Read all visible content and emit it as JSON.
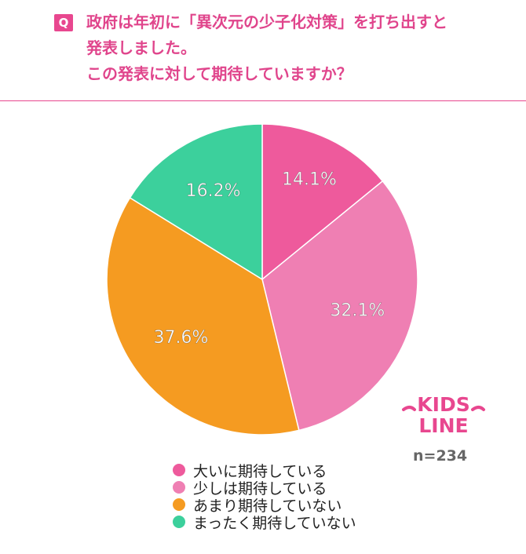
{
  "header": {
    "badge": "Q",
    "question_lines": [
      "政府は年初に「異次元の少子化対策」を打ち出すと",
      "発表しました。",
      "この発表に対して期待していますか？"
    ],
    "color": "#e0458c"
  },
  "logo": {
    "text": "KIDS LINE",
    "line1": "KIDS",
    "line2": "LINE"
  },
  "sample_size": "n=234",
  "chart_data": {
    "type": "pie",
    "start_angle": "12 o'clock",
    "direction": "clockwise",
    "categories": [
      "大いに期待している",
      "少しは期待している",
      "あまり期待していない",
      "まったく期待していない"
    ],
    "values": [
      14.1,
      32.1,
      37.6,
      16.2
    ],
    "labels": [
      "14.1%",
      "32.1%",
      "37.6%",
      "16.2%"
    ],
    "colors": [
      "#ee5a9c",
      "#ef7fb3",
      "#f59b21",
      "#3cd09c"
    ],
    "legend_placement": "bottom"
  }
}
